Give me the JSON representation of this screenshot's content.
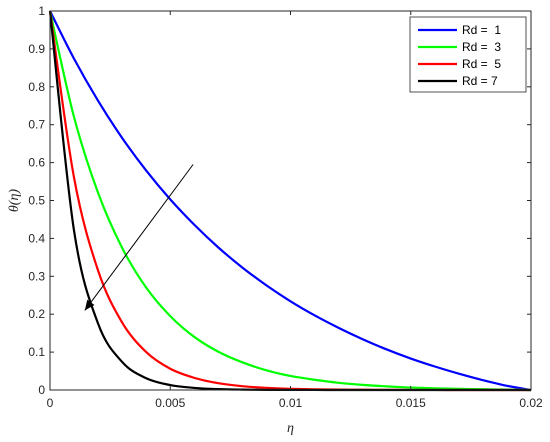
{
  "chart_data": {
    "type": "line",
    "xlabel": "η",
    "ylabel": "θ(η)",
    "xlim": [
      0,
      0.02
    ],
    "ylim": [
      0,
      1
    ],
    "xticks": [
      0,
      0.005,
      0.01,
      0.015,
      0.02
    ],
    "xtick_labels": [
      "0",
      "0.005",
      "0.01",
      "0.015",
      "0.02"
    ],
    "yticks": [
      0,
      0.1,
      0.2,
      0.3,
      0.4,
      0.5,
      0.6,
      0.7,
      0.8,
      0.9,
      1
    ],
    "ytick_labels": [
      "0",
      "0.1",
      "0.2",
      "0.3",
      "0.4",
      "0.5",
      "0.6",
      "0.7",
      "0.8",
      "0.9",
      "1"
    ],
    "grid": false,
    "legend_position": "top-right",
    "x": [
      0,
      0.001,
      0.002,
      0.003,
      0.004,
      0.005,
      0.006,
      0.007,
      0.008,
      0.009,
      0.01,
      0.011,
      0.012,
      0.013,
      0.014,
      0.015,
      0.016,
      0.017,
      0.018,
      0.019,
      0.02
    ],
    "series": [
      {
        "name": "Rd =  1",
        "color": "#0000ff",
        "values": [
          1.0,
          0.874,
          0.763,
          0.665,
          0.579,
          0.503,
          0.436,
          0.376,
          0.323,
          0.276,
          0.234,
          0.197,
          0.164,
          0.134,
          0.107,
          0.083,
          0.062,
          0.043,
          0.026,
          0.011,
          0.0
        ]
      },
      {
        "name": "Rd =  3",
        "color": "#00ff00",
        "values": [
          1.0,
          0.72,
          0.52,
          0.375,
          0.27,
          0.195,
          0.14,
          0.101,
          0.073,
          0.052,
          0.037,
          0.027,
          0.019,
          0.0135,
          0.0095,
          0.0065,
          0.0045,
          0.003,
          0.002,
          0.001,
          0.0
        ]
      },
      {
        "name": "Rd =  5",
        "color": "#ff0000",
        "values": [
          1.0,
          0.56,
          0.315,
          0.178,
          0.1,
          0.056,
          0.032,
          0.018,
          0.01,
          0.0057,
          0.0032,
          0.0018,
          0.001,
          0.0006,
          0.0003,
          0.0002,
          0.0001,
          0.0,
          0.0,
          0.0,
          0.0
        ]
      },
      {
        "name": "Rd = 7",
        "color": "#000000",
        "values": [
          1.0,
          0.42,
          0.175,
          0.074,
          0.031,
          0.013,
          0.0055,
          0.0023,
          0.001,
          0.0004,
          0.0002,
          0.0001,
          0.0,
          0.0,
          0.0,
          0.0,
          0.0,
          0.0,
          0.0,
          0.0,
          0.0
        ]
      }
    ],
    "annotation": {
      "type": "arrow",
      "from": [
        0.00595,
        0.595
      ],
      "to": [
        0.00145,
        0.21
      ]
    }
  }
}
